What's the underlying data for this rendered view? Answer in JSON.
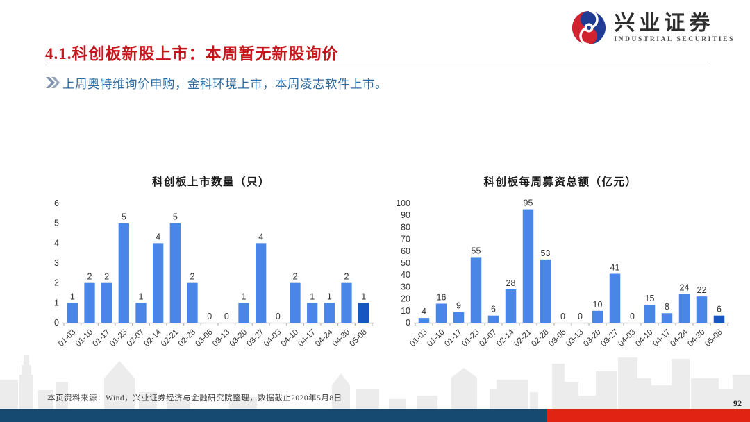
{
  "logo": {
    "name": "兴业证券",
    "subtitle": "INDUSTRIAL SECURITIES"
  },
  "header": {
    "title": "4.1.科创板新股上市：本周暂无新股询价"
  },
  "bullet": {
    "text": "上周奥特维询价申购，金科环境上市，本周凌志软件上市。"
  },
  "chart_data": [
    {
      "type": "bar",
      "title": "科创板上市数量（只）",
      "categories": [
        "01-03",
        "01-10",
        "01-17",
        "01-23",
        "02-07",
        "02-14",
        "02-21",
        "02-28",
        "03-06",
        "03-13",
        "03-20",
        "03-27",
        "04-03",
        "04-10",
        "04-17",
        "04-24",
        "04-30",
        "05-08"
      ],
      "values": [
        1,
        2,
        2,
        5,
        1,
        4,
        5,
        2,
        0,
        0,
        1,
        4,
        0,
        2,
        1,
        1,
        2,
        1
      ],
      "xlabel": "",
      "ylabel": "",
      "ylim": [
        0,
        6
      ],
      "ytick_step": 1,
      "grid": false,
      "legend": false,
      "value_labels": true,
      "bar_color": "#4a86e8",
      "highlight_last": true,
      "highlight_color": "#1656c0"
    },
    {
      "type": "bar",
      "title": "科创板每周募资总额（亿元）",
      "categories": [
        "01-03",
        "01-10",
        "01-17",
        "01-23",
        "02-07",
        "02-14",
        "02-21",
        "02-28",
        "03-06",
        "03-13",
        "03-20",
        "03-27",
        "04-03",
        "04-10",
        "04-17",
        "04-24",
        "04-30",
        "05-08"
      ],
      "values": [
        4,
        16,
        9,
        55,
        6,
        28,
        95,
        53,
        0,
        0,
        10,
        41,
        0,
        15,
        8,
        24,
        22,
        6
      ],
      "xlabel": "",
      "ylabel": "",
      "ylim": [
        0,
        100
      ],
      "ytick_step": 10,
      "grid": false,
      "legend": false,
      "value_labels": true,
      "bar_color": "#4a86e8",
      "highlight_last": true,
      "highlight_color": "#1656c0"
    }
  ],
  "footer": {
    "source": "本页资料来源：Wind，兴业证券经济与金融研究院整理，数据截止2020年5月8日",
    "page_number": "92"
  },
  "colors": {
    "title_red": "#c5161d",
    "bullet_blue": "#2f6b9f",
    "bar_blue": "#4a86e8",
    "bar_highlight_blue": "#1656c0",
    "bottom_bar_blue": "#174a70",
    "bottom_bar_red": "#e02312",
    "logo_red": "#d0232e",
    "logo_blue": "#203b93"
  }
}
